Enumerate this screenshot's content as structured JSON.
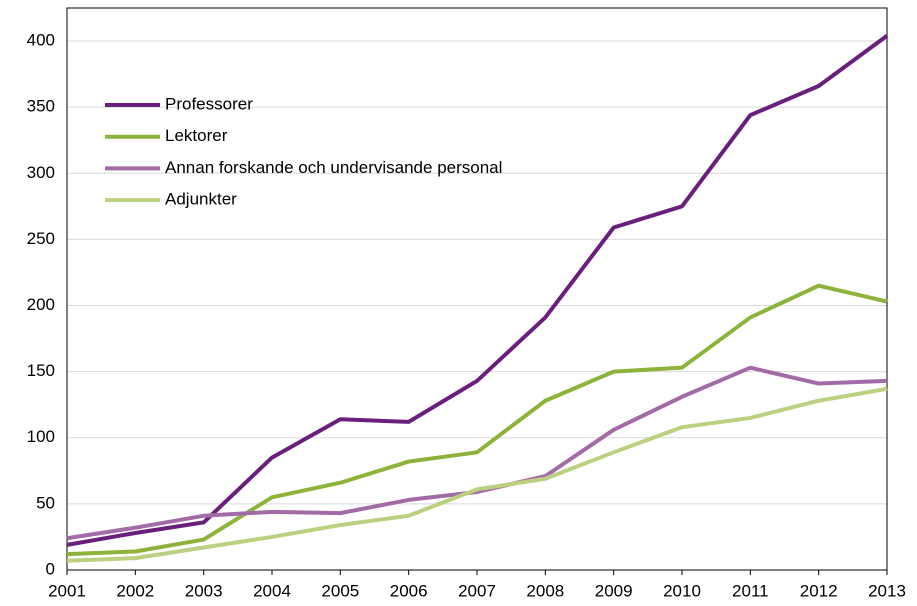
{
  "chart_data": {
    "type": "line",
    "x": [
      2001,
      2002,
      2003,
      2004,
      2005,
      2006,
      2007,
      2008,
      2009,
      2010,
      2011,
      2012,
      2013
    ],
    "series": [
      {
        "name": "Professorer",
        "color": "#6b1f7c",
        "values": [
          19,
          28,
          36,
          85,
          114,
          112,
          143,
          191,
          259,
          275,
          344,
          366,
          404
        ]
      },
      {
        "name": "Lektorer",
        "color": "#8db33a",
        "values": [
          12,
          14,
          23,
          55,
          66,
          82,
          89,
          128,
          150,
          153,
          191,
          215,
          203
        ]
      },
      {
        "name": "Annan forskande och undervisande personal",
        "color": "#a36aa8",
        "values": [
          24,
          32,
          41,
          44,
          43,
          53,
          59,
          71,
          106,
          131,
          153,
          141,
          143
        ]
      },
      {
        "name": "Adjunkter",
        "color": "#bcd17f",
        "values": [
          7,
          9,
          17,
          25,
          34,
          41,
          61,
          69,
          89,
          108,
          115,
          128,
          137
        ]
      }
    ],
    "xlim": [
      2001,
      2013
    ],
    "xticks": [
      2001,
      2002,
      2003,
      2004,
      2005,
      2006,
      2007,
      2008,
      2009,
      2010,
      2011,
      2012,
      2013
    ],
    "ylim": [
      0,
      425
    ],
    "yticks": [
      0,
      50,
      100,
      150,
      200,
      250,
      300,
      350,
      400
    ],
    "grid": true,
    "legend": "upper left"
  }
}
